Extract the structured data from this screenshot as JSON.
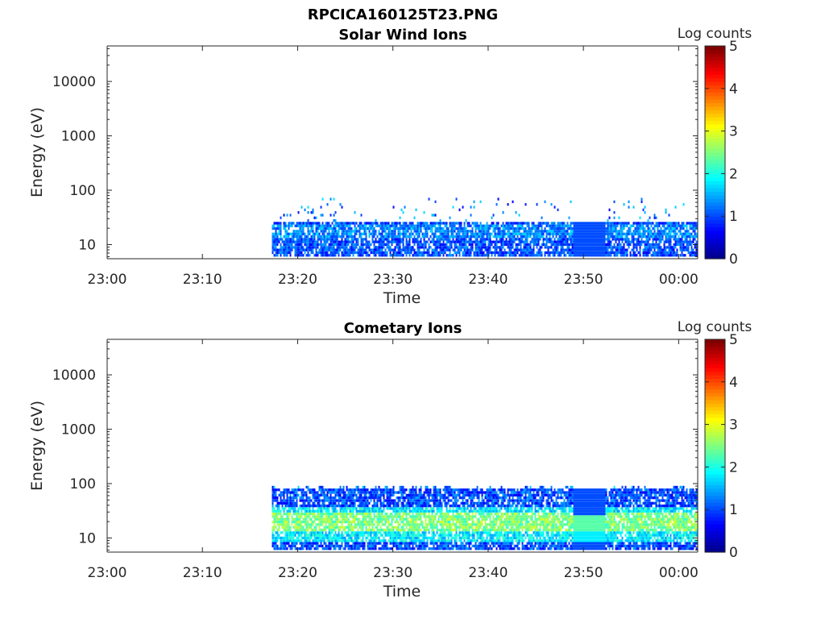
{
  "figure_title": "RPCICA160125T23.PNG",
  "colorscale": [
    "#00008f",
    "#0000ff",
    "#007fff",
    "#00ffff",
    "#7fff7f",
    "#ffff00",
    "#ff7f00",
    "#ff0000",
    "#7f0000"
  ],
  "chart_data": [
    {
      "type": "heatmap",
      "title": "Solar Wind Ions",
      "xlabel": "Time",
      "ylabel": "Energy (eV)",
      "x_ticks": [
        "23:00",
        "23:10",
        "23:20",
        "23:30",
        "23:40",
        "23:50",
        "00:00"
      ],
      "xlim_minutes": [
        0,
        62
      ],
      "y_ticks": [
        "10",
        "100",
        "1000",
        "10000"
      ],
      "ylim": [
        5.5,
        45000
      ],
      "y_scale": "log",
      "colorbar": {
        "label": "Log counts",
        "ticks": [
          "0",
          "1",
          "2",
          "3",
          "4",
          "5"
        ],
        "range": [
          0,
          5
        ]
      },
      "data_start_minute": 17.3,
      "data_end_minute": 62,
      "gap_minutes": [
        48.8,
        52.2
      ],
      "bands": [
        {
          "energy_low": 6,
          "energy_high": 25,
          "log_counts": 1.0
        },
        {
          "energy_low": 12,
          "energy_high": 22,
          "log_counts": 1.3
        }
      ]
    },
    {
      "type": "heatmap",
      "title": "Cometary Ions",
      "xlabel": "Time",
      "ylabel": "Energy (eV)",
      "x_ticks": [
        "23:00",
        "23:10",
        "23:20",
        "23:30",
        "23:40",
        "23:50",
        "00:00"
      ],
      "xlim_minutes": [
        0,
        62
      ],
      "y_ticks": [
        "10",
        "100",
        "1000",
        "10000"
      ],
      "ylim": [
        5.5,
        45000
      ],
      "y_scale": "log",
      "colorbar": {
        "label": "Log counts",
        "ticks": [
          "0",
          "1",
          "2",
          "3",
          "4",
          "5"
        ],
        "range": [
          0,
          5
        ]
      },
      "data_start_minute": 17.3,
      "data_end_minute": 62,
      "gap_minutes": [
        48.8,
        52.2
      ],
      "bands": [
        {
          "energy_low": 6,
          "energy_high": 80,
          "log_counts": 1.0
        },
        {
          "energy_low": 8,
          "energy_high": 35,
          "log_counts": 1.8
        },
        {
          "energy_low": 12,
          "energy_high": 28,
          "log_counts": 2.5
        }
      ]
    }
  ]
}
